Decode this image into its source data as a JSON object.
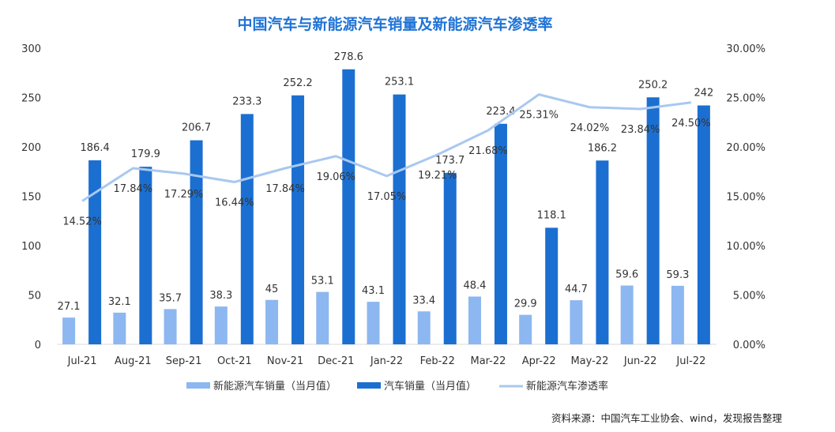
{
  "chart_data": {
    "type": "bar",
    "title": "中国汽车与新能源汽车销量及新能源汽车渗透率",
    "categories": [
      "Jul-21",
      "Aug-21",
      "Sep-21",
      "Oct-21",
      "Nov-21",
      "Dec-21",
      "Jan-22",
      "Feb-22",
      "Mar-22",
      "Apr-22",
      "May-22",
      "Jun-22",
      "Jul-22"
    ],
    "series": [
      {
        "name": "新能源汽车销量（当月值）",
        "type": "bar",
        "axis": "left",
        "color": "#8db7f0",
        "values": [
          27.1,
          32.1,
          35.7,
          38.3,
          45,
          53.1,
          43.1,
          33.4,
          48.4,
          29.9,
          44.7,
          59.6,
          59.3
        ],
        "labels": [
          "27.1",
          "32.1",
          "35.7",
          "38.3",
          "45",
          "53.1",
          "43.1",
          "33.4",
          "48.4",
          "29.9",
          "44.7",
          "59.6",
          "59.3"
        ]
      },
      {
        "name": "汽车销量（当月值）",
        "type": "bar",
        "axis": "left",
        "color": "#1b6fd1",
        "values": [
          186.4,
          179.9,
          206.7,
          233.3,
          252.2,
          278.6,
          253.1,
          173.7,
          223.4,
          118.1,
          186.2,
          250.2,
          242
        ],
        "labels": [
          "186.4",
          "179.9",
          "206.7",
          "233.3",
          "252.2",
          "278.6",
          "253.1",
          "173.7",
          "223.4",
          "118.1",
          "186.2",
          "250.2",
          "242"
        ]
      },
      {
        "name": "新能源汽车渗透率",
        "type": "line",
        "axis": "right",
        "color": "#a9c8ef",
        "values": [
          14.52,
          17.84,
          17.29,
          16.44,
          17.84,
          19.06,
          17.05,
          19.21,
          21.68,
          25.31,
          24.02,
          23.84,
          24.5
        ],
        "labels": [
          "14.52%",
          "17.84%",
          "17.29%",
          "16.44%",
          "17.84%",
          "19.06%",
          "17.05%",
          "19.21%",
          "21.68%",
          "25.31%",
          "24.02%",
          "23.84%",
          "24.50%"
        ]
      }
    ],
    "y_left": {
      "min": 0,
      "max": 300,
      "ticks": [
        "0",
        "50",
        "100",
        "150",
        "200",
        "250",
        "300"
      ],
      "tick_values": [
        0,
        50,
        100,
        150,
        200,
        250,
        300
      ]
    },
    "y_right": {
      "min": 0,
      "max": 30,
      "ticks": [
        "0.00%",
        "5.00%",
        "10.00%",
        "15.00%",
        "20.00%",
        "25.00%",
        "30.00%"
      ],
      "tick_values": [
        0,
        5,
        10,
        15,
        20,
        25,
        30
      ]
    },
    "grid": false,
    "legend_position": "bottom",
    "source_note": "资料来源：中国汽车工业协会、wind，发现报告整理"
  }
}
